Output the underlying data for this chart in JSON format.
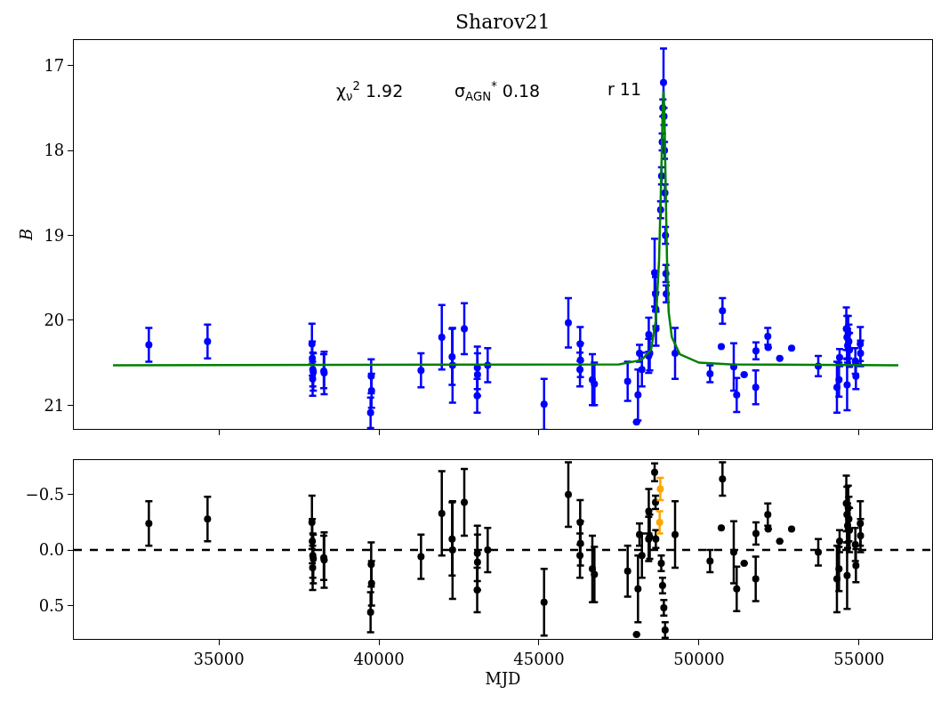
{
  "chart_data": [
    {
      "type": "scatter",
      "title": "Sharov21",
      "ylabel": "B",
      "tick_labels": "y",
      "annotations": [
        "χ$_{ν}$$^{2}$ 1.92",
        "σ$_{AGN}$$^{*}$ 0.18",
        "r 11"
      ],
      "xlim": [
        30470,
        57280
      ],
      "xticks": [
        35000,
        40000,
        45000,
        50000,
        55000
      ],
      "ylim": [
        21.28,
        16.7
      ],
      "yticks": [
        17,
        18,
        19,
        20,
        21
      ],
      "series": [
        {
          "color": "#0000ff",
          "marker": "circle",
          "x": [
            32814,
            34647,
            37908,
            37920,
            37935,
            37950,
            37930,
            38278,
            38290,
            39759,
            39770,
            39740,
            41315,
            41964,
            42287,
            42300,
            42667,
            43075,
            43080,
            43070,
            43398,
            45159,
            45917,
            46287,
            46295,
            46280,
            46667,
            46732,
            47770,
            48093,
            48048,
            48140,
            48215,
            48426,
            48430,
            48460,
            48612,
            48640,
            48650,
            48655,
            48800,
            48830,
            48850,
            48870,
            48890,
            48905,
            48920,
            48935,
            48950,
            48965,
            48975,
            49251,
            50343,
            50732,
            50695,
            51084,
            51176,
            51409,
            51778,
            51770,
            52148,
            52160,
            52521,
            52891,
            53724,
            54307,
            54372,
            54390,
            54600,
            54620,
            54640,
            54660,
            54680,
            54700,
            54625,
            54882,
            54900,
            55037,
            55045
          ],
          "values": [
            20.29,
            20.25,
            20.28,
            20.45,
            20.58,
            20.61,
            20.69,
            20.6,
            20.62,
            20.66,
            20.83,
            21.09,
            20.59,
            20.2,
            20.43,
            20.53,
            20.1,
            20.56,
            20.64,
            20.89,
            20.53,
            20.99,
            20.03,
            20.28,
            20.47,
            20.58,
            20.7,
            20.75,
            20.72,
            20.88,
            21.2,
            20.39,
            20.58,
            20.42,
            20.17,
            20.39,
            19.44,
            19.69,
            19.87,
            20.1,
            18.7,
            18.3,
            17.9,
            17.5,
            17.2,
            17.6,
            18.0,
            18.5,
            19.0,
            19.45,
            19.69,
            20.39,
            20.63,
            19.89,
            20.31,
            20.55,
            20.88,
            20.64,
            20.36,
            20.79,
            20.19,
            20.32,
            20.45,
            20.33,
            20.54,
            20.79,
            20.7,
            20.44,
            20.1,
            20.2,
            20.3,
            20.15,
            20.25,
            20.35,
            20.76,
            20.48,
            20.66,
            20.28,
            20.39
          ],
          "errors": [
            0.2,
            0.2,
            0.24,
            0.2,
            0.2,
            0.22,
            0.2,
            0.2,
            0.25,
            0.2,
            0.2,
            0.18,
            0.2,
            0.38,
            0.33,
            0.44,
            0.3,
            0.25,
            0.25,
            0.2,
            0.2,
            0.3,
            0.29,
            0.2,
            0.2,
            0.2,
            0.3,
            0.25,
            0.23,
            0.3,
            null,
            0.1,
            0.2,
            0.2,
            0.2,
            0.2,
            0.4,
            0.2,
            0.2,
            0.2,
            0.1,
            0.1,
            0.1,
            0.1,
            0.4,
            0.1,
            0.1,
            0.1,
            0.1,
            0.1,
            0.1,
            0.3,
            0.1,
            0.15,
            null,
            0.28,
            0.2,
            null,
            0.1,
            0.2,
            0.1,
            null,
            null,
            null,
            0.12,
            0.3,
            0.2,
            0.1,
            0.25,
            0.25,
            0.2,
            0.2,
            0.2,
            0.2,
            0.3,
            0.15,
            0.15,
            0.2,
            0.15
          ]
        },
        {
          "type": "line",
          "color": "#008000",
          "x": [
            31694,
            47500,
            48200,
            48500,
            48650,
            48750,
            48820,
            48860,
            48890,
            48920,
            48960,
            49000,
            49050,
            49150,
            49400,
            50000,
            51000,
            56224
          ],
          "values": [
            20.53,
            20.52,
            20.47,
            20.35,
            20.0,
            19.3,
            18.3,
            17.6,
            17.3,
            17.6,
            18.5,
            19.3,
            19.9,
            20.2,
            20.4,
            20.5,
            20.52,
            20.53
          ]
        }
      ]
    },
    {
      "type": "scatter",
      "xlabel": "MJD",
      "xlim": [
        30470,
        57280
      ],
      "xticks": [
        35000,
        40000,
        45000,
        50000,
        55000
      ],
      "ylim": [
        0.8,
        -0.81
      ],
      "yticks": [
        {
          "value": -0.5,
          "label": "−0.5"
        },
        {
          "value": 0,
          "label": "0.0"
        },
        0.5
      ],
      "ref_lines": [
        {
          "axis": "y",
          "value": 0,
          "color": "#000000",
          "line_style": "dashed"
        }
      ],
      "series": [
        {
          "color": "#000000",
          "marker": "circle",
          "x": [
            32814,
            34647,
            37908,
            37920,
            37935,
            37950,
            37930,
            38278,
            38290,
            39759,
            39770,
            39740,
            41315,
            41964,
            42287,
            42300,
            42667,
            43075,
            43080,
            43070,
            43398,
            45159,
            45917,
            46287,
            46295,
            46280,
            46667,
            46732,
            47770,
            48093,
            48048,
            48140,
            48215,
            48426,
            48430,
            48460,
            48612,
            48640,
            48650,
            48820,
            48860,
            48900,
            48940,
            49251,
            50343,
            50732,
            50695,
            51084,
            51176,
            51409,
            51778,
            51770,
            52148,
            52160,
            52521,
            52891,
            53724,
            54307,
            54372,
            54390,
            54600,
            54620,
            54640,
            54660,
            54680,
            54700,
            54625,
            54882,
            54900,
            55037,
            55045
          ],
          "values": [
            -0.24,
            -0.28,
            -0.25,
            -0.08,
            0.05,
            0.08,
            0.16,
            0.07,
            0.09,
            0.13,
            0.3,
            0.56,
            0.06,
            -0.33,
            -0.1,
            0.0,
            -0.43,
            0.03,
            0.11,
            0.36,
            0.0,
            0.47,
            -0.5,
            -0.25,
            -0.06,
            0.05,
            0.17,
            0.22,
            0.19,
            0.35,
            0.76,
            -0.14,
            0.05,
            -0.1,
            -0.35,
            -0.12,
            -0.7,
            -0.43,
            -0.1,
            0.12,
            0.32,
            0.52,
            0.72,
            -0.14,
            0.1,
            -0.64,
            -0.2,
            0.02,
            0.35,
            0.12,
            -0.15,
            0.26,
            -0.32,
            -0.19,
            -0.08,
            -0.19,
            0.02,
            0.26,
            0.17,
            -0.08,
            -0.42,
            -0.32,
            -0.22,
            -0.38,
            -0.28,
            -0.18,
            0.23,
            -0.05,
            0.14,
            -0.24,
            -0.13
          ],
          "errors": [
            0.2,
            0.2,
            0.24,
            0.2,
            0.2,
            0.22,
            0.2,
            0.2,
            0.25,
            0.2,
            0.2,
            0.18,
            0.2,
            0.38,
            0.33,
            0.44,
            0.3,
            0.25,
            0.25,
            0.2,
            0.2,
            0.3,
            0.29,
            0.2,
            0.2,
            0.2,
            0.3,
            0.25,
            0.23,
            0.3,
            null,
            0.1,
            0.2,
            0.2,
            0.2,
            0.2,
            0.08,
            0.06,
            0.08,
            0.07,
            0.07,
            0.07,
            0.07,
            0.3,
            0.1,
            0.15,
            null,
            0.28,
            0.2,
            null,
            0.1,
            0.2,
            0.1,
            null,
            null,
            null,
            0.12,
            0.3,
            0.2,
            0.1,
            0.25,
            0.25,
            0.2,
            0.2,
            0.2,
            0.2,
            0.3,
            0.15,
            0.15,
            0.2,
            0.15
          ]
        },
        {
          "color": "#ffa500",
          "marker": "circle",
          "x": [
            48770,
            48790
          ],
          "values": [
            -0.25,
            -0.55
          ],
          "errors": [
            0.1,
            0.1
          ]
        }
      ]
    }
  ]
}
